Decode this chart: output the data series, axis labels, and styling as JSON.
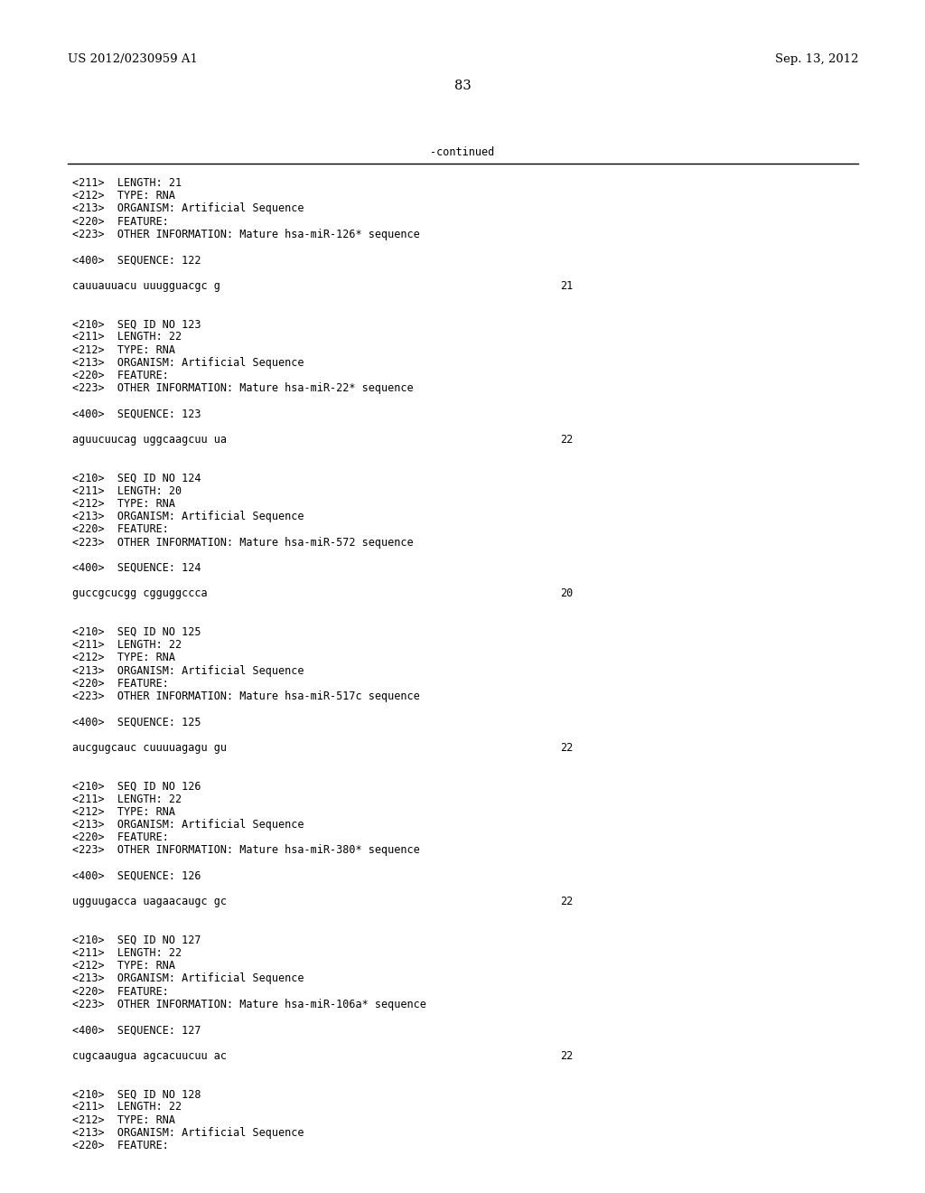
{
  "background_color": "#ffffff",
  "text_color": "#000000",
  "page_header_left": "US 2012/0230959 A1",
  "page_header_right": "Sep. 13, 2012",
  "page_number": "83",
  "continued_label": "-continued",
  "font_size_header": 9.5,
  "font_size_body": 8.5,
  "font_size_page_num": 10.5,
  "lines": [
    {
      "text": "<211>  LENGTH: 21"
    },
    {
      "text": "<212>  TYPE: RNA"
    },
    {
      "text": "<213>  ORGANISM: Artificial Sequence"
    },
    {
      "text": "<220>  FEATURE:"
    },
    {
      "text": "<223>  OTHER INFORMATION: Mature hsa-miR-126* sequence"
    },
    {
      "text": ""
    },
    {
      "text": "<400>  SEQUENCE: 122"
    },
    {
      "text": ""
    },
    {
      "text": "cauuauuacu uuugguacgc g",
      "num": "21"
    },
    {
      "text": ""
    },
    {
      "text": ""
    },
    {
      "text": "<210>  SEQ ID NO 123"
    },
    {
      "text": "<211>  LENGTH: 22"
    },
    {
      "text": "<212>  TYPE: RNA"
    },
    {
      "text": "<213>  ORGANISM: Artificial Sequence"
    },
    {
      "text": "<220>  FEATURE:"
    },
    {
      "text": "<223>  OTHER INFORMATION: Mature hsa-miR-22* sequence"
    },
    {
      "text": ""
    },
    {
      "text": "<400>  SEQUENCE: 123"
    },
    {
      "text": ""
    },
    {
      "text": "aguucuucag uggcaagcuu ua",
      "num": "22"
    },
    {
      "text": ""
    },
    {
      "text": ""
    },
    {
      "text": "<210>  SEQ ID NO 124"
    },
    {
      "text": "<211>  LENGTH: 20"
    },
    {
      "text": "<212>  TYPE: RNA"
    },
    {
      "text": "<213>  ORGANISM: Artificial Sequence"
    },
    {
      "text": "<220>  FEATURE:"
    },
    {
      "text": "<223>  OTHER INFORMATION: Mature hsa-miR-572 sequence"
    },
    {
      "text": ""
    },
    {
      "text": "<400>  SEQUENCE: 124"
    },
    {
      "text": ""
    },
    {
      "text": "guccgcucgg cgguggccca",
      "num": "20"
    },
    {
      "text": ""
    },
    {
      "text": ""
    },
    {
      "text": "<210>  SEQ ID NO 125"
    },
    {
      "text": "<211>  LENGTH: 22"
    },
    {
      "text": "<212>  TYPE: RNA"
    },
    {
      "text": "<213>  ORGANISM: Artificial Sequence"
    },
    {
      "text": "<220>  FEATURE:"
    },
    {
      "text": "<223>  OTHER INFORMATION: Mature hsa-miR-517c sequence"
    },
    {
      "text": ""
    },
    {
      "text": "<400>  SEQUENCE: 125"
    },
    {
      "text": ""
    },
    {
      "text": "aucgugcauc cuuuuagagu gu",
      "num": "22"
    },
    {
      "text": ""
    },
    {
      "text": ""
    },
    {
      "text": "<210>  SEQ ID NO 126"
    },
    {
      "text": "<211>  LENGTH: 22"
    },
    {
      "text": "<212>  TYPE: RNA"
    },
    {
      "text": "<213>  ORGANISM: Artificial Sequence"
    },
    {
      "text": "<220>  FEATURE:"
    },
    {
      "text": "<223>  OTHER INFORMATION: Mature hsa-miR-380* sequence"
    },
    {
      "text": ""
    },
    {
      "text": "<400>  SEQUENCE: 126"
    },
    {
      "text": ""
    },
    {
      "text": "ugguugacca uagaacaugc gc",
      "num": "22"
    },
    {
      "text": ""
    },
    {
      "text": ""
    },
    {
      "text": "<210>  SEQ ID NO 127"
    },
    {
      "text": "<211>  LENGTH: 22"
    },
    {
      "text": "<212>  TYPE: RNA"
    },
    {
      "text": "<213>  ORGANISM: Artificial Sequence"
    },
    {
      "text": "<220>  FEATURE:"
    },
    {
      "text": "<223>  OTHER INFORMATION: Mature hsa-miR-106a* sequence"
    },
    {
      "text": ""
    },
    {
      "text": "<400>  SEQUENCE: 127"
    },
    {
      "text": ""
    },
    {
      "text": "cugcaaugua agcacuucuu ac",
      "num": "22"
    },
    {
      "text": ""
    },
    {
      "text": ""
    },
    {
      "text": "<210>  SEQ ID NO 128"
    },
    {
      "text": "<211>  LENGTH: 22"
    },
    {
      "text": "<212>  TYPE: RNA"
    },
    {
      "text": "<213>  ORGANISM: Artificial Sequence"
    },
    {
      "text": "<220>  FEATURE:"
    }
  ]
}
